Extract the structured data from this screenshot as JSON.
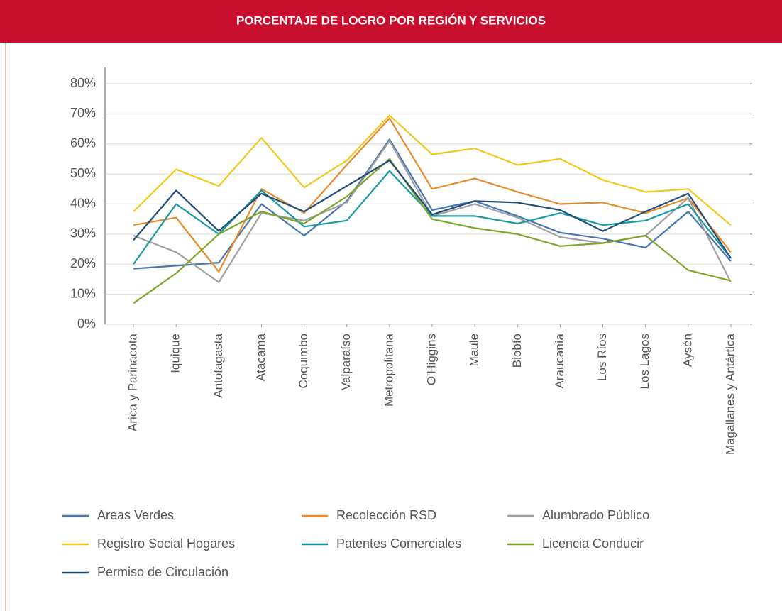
{
  "chart_data": {
    "type": "line",
    "title": "PORCENTAJE  DE LOGRO POR REGIÓN Y SERVICIOS",
    "categories": [
      "Arica y Parinacota",
      "Iquique",
      "Antofagasta",
      "Atacama",
      "Coquimbo",
      "Valparaíso",
      "Metropolitana",
      "O'Higgins",
      "Maule",
      "Biobío",
      "Araucanía",
      "Los Ríos",
      "Los Lagos",
      "Aysén",
      "Magallanes y Antártica"
    ],
    "series": [
      {
        "name": "Areas Verdes",
        "color": "#4a76b0",
        "values": [
          18.5,
          19.5,
          20.5,
          40,
          29.5,
          41,
          61.5,
          38,
          41,
          36,
          30.5,
          28.5,
          25.5,
          37.5,
          21
        ]
      },
      {
        "name": "Recolección RSD",
        "color": "#e8892a",
        "values": [
          33,
          35.5,
          17.5,
          45,
          37,
          53,
          68.5,
          45,
          48.5,
          44,
          40,
          40.5,
          37,
          42,
          24
        ]
      },
      {
        "name": "Alumbrado Público",
        "color": "#a0a0a0",
        "values": [
          29.5,
          24,
          14,
          37,
          34.5,
          40.5,
          61,
          36,
          40,
          35.5,
          29,
          27,
          29.5,
          42,
          14
        ]
      },
      {
        "name": "Registro Social Hogares",
        "color": "#f2c81a",
        "values": [
          37.5,
          51.5,
          46,
          62,
          45.5,
          54.5,
          69.5,
          56.5,
          58.5,
          53,
          55,
          48,
          44,
          45,
          33
        ]
      },
      {
        "name": "Patentes Comerciales",
        "color": "#1a9aa0",
        "values": [
          20,
          40,
          30,
          44.5,
          32.5,
          34.5,
          51,
          36,
          36,
          33.5,
          37,
          33,
          34.5,
          40,
          22
        ]
      },
      {
        "name": "Licencia Conducir",
        "color": "#7ea62a",
        "values": [
          7,
          17,
          30,
          37.5,
          33.5,
          42.5,
          55,
          35,
          32,
          30,
          26,
          27,
          29.5,
          18,
          14.5
        ]
      },
      {
        "name": "Permiso de Circulación",
        "color": "#1f4e79",
        "values": [
          28,
          44.5,
          31,
          43.5,
          37.5,
          46,
          54.5,
          36.5,
          41,
          40.5,
          38,
          31,
          37.5,
          43.5,
          22
        ]
      }
    ],
    "ylim": [
      0,
      80
    ],
    "yticks": [
      {
        "value": 0,
        "label": "0%"
      },
      {
        "value": 10,
        "label": "10%"
      },
      {
        "value": 20,
        "label": "20%"
      },
      {
        "value": 30,
        "label": "30%"
      },
      {
        "value": 40,
        "label": "40%"
      },
      {
        "value": 50,
        "label": "50%"
      },
      {
        "value": 60,
        "label": "60%"
      },
      {
        "value": 70,
        "label": "70%"
      },
      {
        "value": 80,
        "label": "80%"
      }
    ],
    "grid": true
  }
}
